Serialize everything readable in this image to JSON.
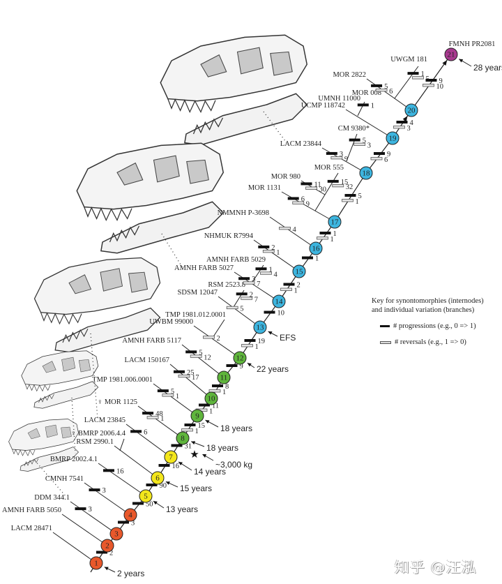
{
  "colors": {
    "juvenile": "#e8582b",
    "subadult_early": "#f3e61b",
    "subadult": "#5fb53c",
    "young_adult": "#3db5df",
    "adult": "#a8398f"
  },
  "nodes": [
    {
      "n": "1",
      "stage": "juvenile"
    },
    {
      "n": "2",
      "stage": "juvenile"
    },
    {
      "n": "3",
      "stage": "juvenile"
    },
    {
      "n": "4",
      "stage": "juvenile"
    },
    {
      "n": "5",
      "stage": "subadult_early"
    },
    {
      "n": "6",
      "stage": "subadult_early"
    },
    {
      "n": "7",
      "stage": "subadult_early"
    },
    {
      "n": "8",
      "stage": "subadult"
    },
    {
      "n": "9",
      "stage": "subadult"
    },
    {
      "n": "10",
      "stage": "subadult"
    },
    {
      "n": "11",
      "stage": "subadult"
    },
    {
      "n": "12",
      "stage": "subadult"
    },
    {
      "n": "13",
      "stage": "young_adult"
    },
    {
      "n": "14",
      "stage": "young_adult"
    },
    {
      "n": "15",
      "stage": "young_adult"
    },
    {
      "n": "16",
      "stage": "young_adult"
    },
    {
      "n": "17",
      "stage": "young_adult"
    },
    {
      "n": "18",
      "stage": "young_adult"
    },
    {
      "n": "19",
      "stage": "young_adult"
    },
    {
      "n": "20",
      "stage": "young_adult"
    },
    {
      "n": "21",
      "stage": "adult"
    }
  ],
  "internodes": [
    {
      "from": "1",
      "to": "2",
      "progressions": "2",
      "reversals": ""
    },
    {
      "from": "2",
      "to": "3",
      "progressions": "",
      "reversals": ""
    },
    {
      "from": "3",
      "to": "4",
      "progressions": "3",
      "reversals": ""
    },
    {
      "from": "4",
      "to": "5",
      "progressions": "50",
      "reversals": ""
    },
    {
      "from": "5",
      "to": "6",
      "progressions": "90",
      "reversals": ""
    },
    {
      "from": "6",
      "to": "7",
      "progressions": "16",
      "reversals": ""
    },
    {
      "from": "7",
      "to": "8",
      "progressions": "31",
      "reversals": ""
    },
    {
      "from": "8",
      "to": "9",
      "progressions": "15",
      "reversals": "1"
    },
    {
      "from": "9",
      "to": "10",
      "progressions": "11",
      "reversals": "1"
    },
    {
      "from": "10",
      "to": "11",
      "progressions": "8",
      "reversals": "1"
    },
    {
      "from": "11",
      "to": "12",
      "progressions": "9",
      "reversals": ""
    },
    {
      "from": "12",
      "to": "13",
      "progressions": "19",
      "reversals": "1"
    },
    {
      "from": "13",
      "to": "14",
      "progressions": "10",
      "reversals": ""
    },
    {
      "from": "14",
      "to": "15",
      "progressions": "2",
      "reversals": "1"
    },
    {
      "from": "15",
      "to": "16",
      "progressions": "1",
      "reversals": ""
    },
    {
      "from": "16",
      "to": "17",
      "progressions": "1",
      "reversals": "1"
    },
    {
      "from": "17",
      "to": "18",
      "progressions": "5",
      "reversals": "1"
    },
    {
      "from": "18",
      "to": "19",
      "progressions": "9",
      "reversals": "6"
    },
    {
      "from": "19",
      "to": "20",
      "progressions": "4",
      "reversals": "3"
    },
    {
      "from": "20",
      "to": "21",
      "progressions": "9",
      "reversals": "10"
    }
  ],
  "branches": [
    {
      "specimen": "LACM 28471",
      "progressions": "",
      "reversals": ""
    },
    {
      "specimen": "AMNH FARB 5050",
      "progressions": "",
      "reversals": ""
    },
    {
      "specimen": "DDM 344.1",
      "progressions": "3",
      "reversals": ""
    },
    {
      "specimen": "CMNH 7541",
      "progressions": "3",
      "reversals": ""
    },
    {
      "specimen": "BMRP 2002.4.1",
      "progressions": "16",
      "reversals": ""
    },
    {
      "specimen": "RSM 2990.1",
      "progressions": "",
      "reversals": ""
    },
    {
      "specimen": "♀ BMRP 2006.4.4",
      "progressions": "",
      "reversals": ""
    },
    {
      "specimen": "LACM 23845",
      "progressions": "6",
      "reversals": ""
    },
    {
      "specimen": "♀ MOR 1125",
      "progressions": "48",
      "reversals": "1"
    },
    {
      "specimen": "TMP 1981.006.0001",
      "progressions": "5",
      "reversals": "1"
    },
    {
      "specimen": "LACM 150167",
      "progressions": "25",
      "reversals": "17"
    },
    {
      "specimen": "AMNH FARB 5117",
      "progressions": "5",
      "reversals": "12"
    },
    {
      "specimen": "UWBM 99000",
      "progressions": "",
      "reversals": "2"
    },
    {
      "specimen": "TMP 1981.012.0001",
      "progressions": "",
      "reversals": ""
    },
    {
      "specimen": "SDSM 12047",
      "progressions": "",
      "reversals": "5"
    },
    {
      "specimen": "RSM 2523.8",
      "progressions": "2",
      "reversals": "7"
    },
    {
      "specimen": "AMNH FARB 5027",
      "progressions": "3",
      "reversals": "7"
    },
    {
      "specimen": "AMNH FARB 5029",
      "progressions": "1",
      "reversals": "4"
    },
    {
      "specimen": "NHMUK R7994",
      "progressions": "2",
      "reversals": "1"
    },
    {
      "specimen": "NMMNH P-3698",
      "progressions": "",
      "reversals": "4"
    },
    {
      "specimen": "MOR 1131",
      "progressions": "6",
      "reversals": "9"
    },
    {
      "specimen": "MOR 980",
      "progressions": "11",
      "reversals": "30"
    },
    {
      "specimen": "MOR 555",
      "progressions": "15",
      "reversals": "32"
    },
    {
      "specimen": "LACM 23844",
      "progressions": "3",
      "reversals": "9"
    },
    {
      "specimen": "CM 9380*",
      "progressions": "5",
      "reversals": "3"
    },
    {
      "specimen": "UCMP 118742",
      "progressions": "",
      "reversals": ""
    },
    {
      "specimen": "UMNH 11000",
      "progressions": "",
      "reversals": ""
    },
    {
      "specimen": "MOR 008",
      "progressions": "1",
      "reversals": ""
    },
    {
      "specimen": "MOR 2822",
      "progressions": "5",
      "reversals": "6"
    },
    {
      "specimen": "UWGM 181",
      "progressions": "1",
      "reversals": "5"
    },
    {
      "specimen": "FMNH PR2081",
      "progressions": "",
      "reversals": ""
    }
  ],
  "annotations": [
    {
      "text": "2 years",
      "node": "1"
    },
    {
      "text": "13 years",
      "node": "5"
    },
    {
      "text": "15 years",
      "node": "6"
    },
    {
      "text": "14 years",
      "node": "7"
    },
    {
      "text": "18 years",
      "node": "8"
    },
    {
      "text": "18 years",
      "node": "9"
    },
    {
      "text": "22 years",
      "node": "12"
    },
    {
      "text": "EFS",
      "node": "13"
    },
    {
      "text": "28 years",
      "node": "21"
    },
    {
      "text": "~3,000 kg",
      "marker": "star-icon"
    }
  ],
  "key": {
    "title_line1": "Key for synontomorphies (internodes)",
    "title_line2": "and individual variation (branches)",
    "progressions": "# progressions (e.g., 0 => 1)",
    "reversals": "# reversals (e.g., 1 => 0)"
  },
  "watermark": "知乎 @汪泓"
}
